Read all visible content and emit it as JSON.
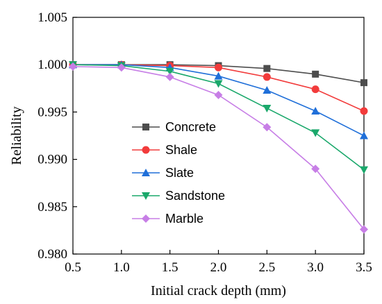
{
  "chart_data": {
    "type": "line",
    "title": "",
    "xlabel": "Initial crack depth (mm)",
    "ylabel": "Reliability",
    "xlim": [
      0.5,
      3.5
    ],
    "ylim": [
      0.98,
      1.005
    ],
    "x": [
      0.5,
      1.0,
      1.5,
      2.0,
      2.5,
      3.0,
      3.5
    ],
    "x_ticks": [
      "0.5",
      "1.0",
      "1.5",
      "2.0",
      "2.5",
      "3.0",
      "3.5"
    ],
    "y_ticks": [
      "0.980",
      "0.985",
      "0.990",
      "0.995",
      "1.000",
      "1.005"
    ],
    "y_tick_values": [
      0.98,
      0.985,
      0.99,
      0.995,
      1.0,
      1.005
    ],
    "grid": false,
    "legend_position": "center-left",
    "series": [
      {
        "name": "Concrete",
        "color": "#4d4d4d",
        "marker": "square",
        "values": [
          1.0,
          1.0,
          1.0,
          0.9999,
          0.9996,
          0.999,
          0.9981
        ]
      },
      {
        "name": "Shale",
        "color": "#f23b3b",
        "marker": "circle",
        "values": [
          1.0,
          1.0,
          0.9999,
          0.9997,
          0.9987,
          0.9974,
          0.9951
        ]
      },
      {
        "name": "Slate",
        "color": "#1f6fd9",
        "marker": "triangle-up",
        "values": [
          1.0,
          1.0,
          0.9997,
          0.9988,
          0.9973,
          0.9951,
          0.9925
        ]
      },
      {
        "name": "Sandstone",
        "color": "#1aa86b",
        "marker": "triangle-down",
        "values": [
          1.0,
          0.9999,
          0.9993,
          0.998,
          0.9954,
          0.9928,
          0.9889
        ]
      },
      {
        "name": "Marble",
        "color": "#c77ee6",
        "marker": "diamond",
        "values": [
          0.9998,
          0.9997,
          0.9987,
          0.9968,
          0.9934,
          0.989,
          0.9826
        ]
      }
    ]
  }
}
